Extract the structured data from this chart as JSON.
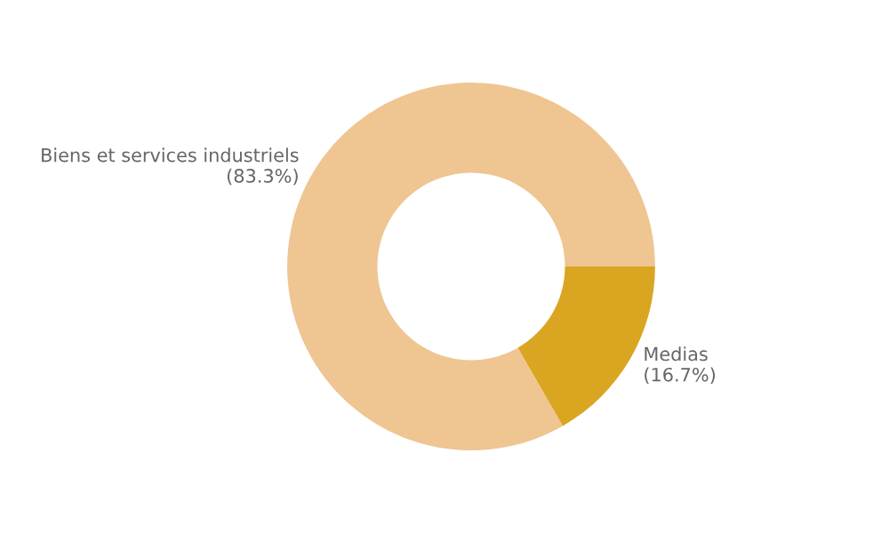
{
  "chart_data": {
    "type": "donut",
    "categories": [
      "Biens et services industriels",
      "Medias"
    ],
    "values": [
      83.3,
      16.7
    ],
    "colors": [
      "#efc592",
      "#daa520"
    ],
    "value_labels": [
      "(83.3%)",
      "(16.7%)"
    ],
    "legend": false
  }
}
